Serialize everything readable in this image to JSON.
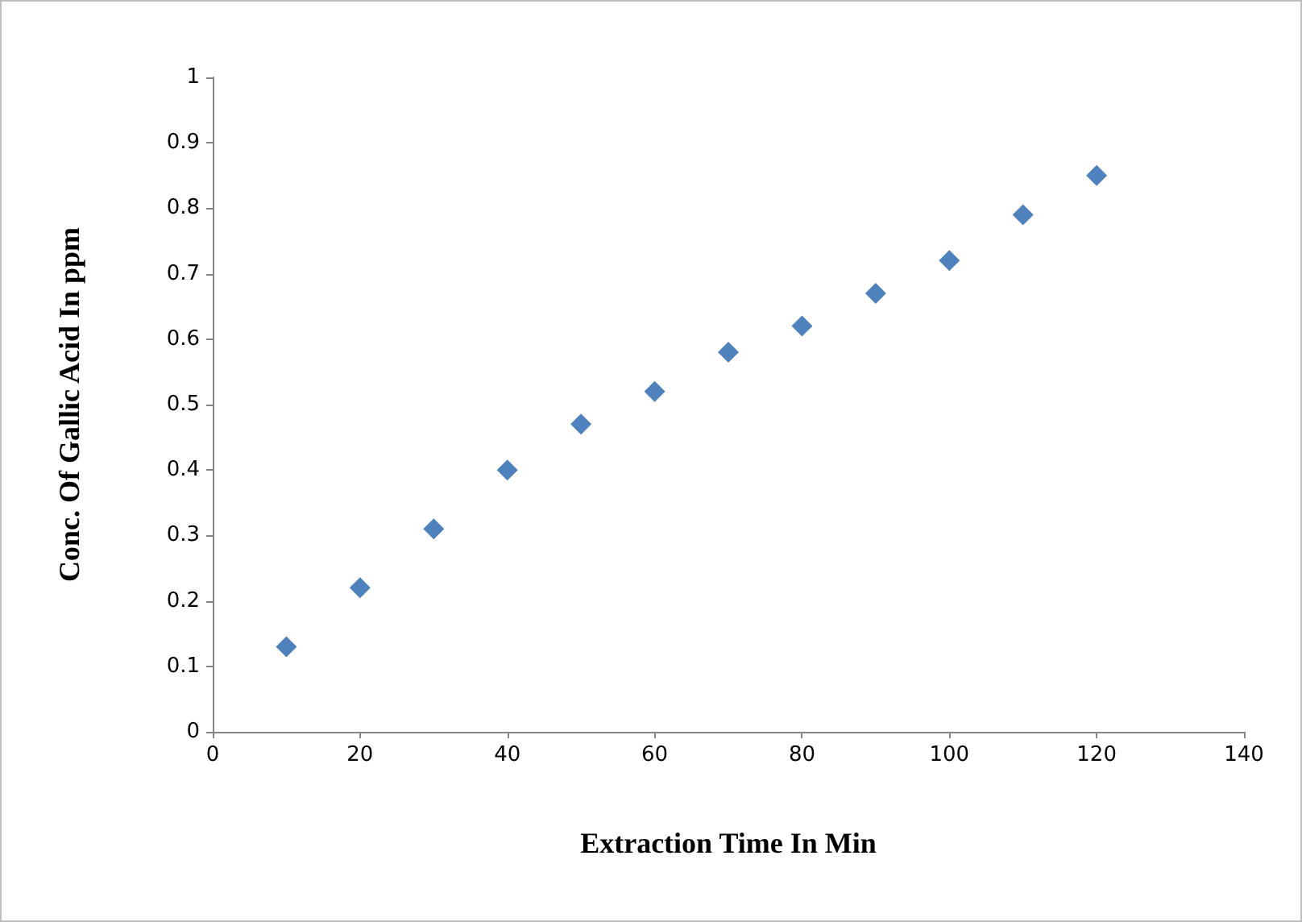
{
  "chart_data": {
    "type": "scatter",
    "xlabel": "Extraction Time In Min",
    "ylabel": "Conc. Of Gallic Acid In ppm",
    "x": [
      10,
      20,
      30,
      40,
      50,
      60,
      70,
      80,
      90,
      100,
      110,
      120
    ],
    "values": [
      0.13,
      0.22,
      0.31,
      0.4,
      0.47,
      0.52,
      0.58,
      0.62,
      0.67,
      0.72,
      0.79,
      0.85
    ],
    "color": "#4f81bd",
    "marker": "diamond",
    "xlim": [
      0,
      140
    ],
    "xticks": [
      0,
      20,
      40,
      60,
      80,
      100,
      120,
      140
    ],
    "ylim": [
      0,
      1
    ],
    "yticks": [
      0,
      0.1,
      0.2,
      0.3,
      0.4,
      0.5,
      0.6,
      0.7,
      0.8,
      0.9,
      1
    ],
    "grid": false
  }
}
